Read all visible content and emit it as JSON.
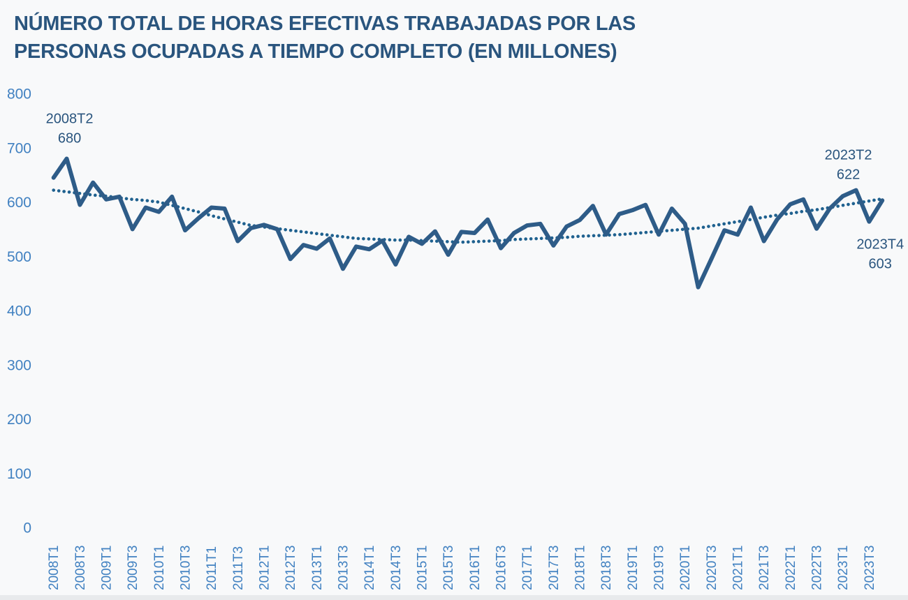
{
  "chart_data": {
    "type": "line",
    "title_lines": [
      "NÚMERO TOTAL DE HORAS EFECTIVAS TRABAJADAS POR LAS",
      "PERSONAS OCUPADAS A TIEMPO COMPLETO (EN MILLONES)"
    ],
    "title": "NÚMERO TOTAL DE HORAS EFECTIVAS TRABAJADAS POR LAS PERSONAS OCUPADAS A TIEMPO COMPLETO (EN MILLONES)",
    "ylim": [
      0,
      800
    ],
    "yticks": [
      800,
      700,
      600,
      500,
      400,
      300,
      200,
      100,
      0
    ],
    "x_tick_labels": [
      "2008T1",
      "2008T3",
      "2009T1",
      "2009T3",
      "2010T1",
      "2010T3",
      "2011T1",
      "2011T3",
      "2012T1",
      "2012T3",
      "2013T1",
      "2013T3",
      "2014T1",
      "2014T3",
      "2015T1",
      "2015T3",
      "2016T1",
      "2016T3",
      "2017T1",
      "2017T3",
      "2018T1",
      "2018T3",
      "2019T1",
      "2019T3",
      "2020T1",
      "2020T3",
      "2021T1",
      "2021T3",
      "2022T1",
      "2022T3",
      "2023T1",
      "2023T3"
    ],
    "categories": [
      "2008T1",
      "2008T2",
      "2008T3",
      "2008T4",
      "2009T1",
      "2009T2",
      "2009T3",
      "2009T4",
      "2010T1",
      "2010T2",
      "2010T3",
      "2010T4",
      "2011T1",
      "2011T2",
      "2011T3",
      "2011T4",
      "2012T1",
      "2012T2",
      "2012T3",
      "2012T4",
      "2013T1",
      "2013T2",
      "2013T3",
      "2013T4",
      "2014T1",
      "2014T2",
      "2014T3",
      "2014T4",
      "2015T1",
      "2015T2",
      "2015T3",
      "2015T4",
      "2016T1",
      "2016T2",
      "2016T3",
      "2016T4",
      "2017T1",
      "2017T2",
      "2017T3",
      "2017T4",
      "2018T1",
      "2018T2",
      "2018T3",
      "2018T4",
      "2019T1",
      "2019T2",
      "2019T3",
      "2019T4",
      "2020T1",
      "2020T2",
      "2020T3",
      "2020T4",
      "2021T1",
      "2021T2",
      "2021T3",
      "2021T4",
      "2022T1",
      "2022T2",
      "2022T3",
      "2022T4",
      "2023T1",
      "2023T2",
      "2023T3",
      "2023T4"
    ],
    "series": [
      {
        "name": "horas-efectivas",
        "values": [
          645,
          680,
          595,
          636,
          605,
          610,
          550,
          590,
          582,
          610,
          548,
          570,
          590,
          588,
          528,
          552,
          558,
          550,
          495,
          521,
          514,
          533,
          477,
          518,
          513,
          529,
          485,
          536,
          523,
          546,
          503,
          545,
          543,
          568,
          515,
          543,
          557,
          560,
          520,
          555,
          567,
          593,
          540,
          578,
          585,
          595,
          540,
          588,
          560,
          443,
          495,
          548,
          540,
          590,
          528,
          568,
          596,
          605,
          551,
          588,
          611,
          622,
          564,
          603
        ]
      },
      {
        "name": "tendencia",
        "values": [
          622,
          619,
          616,
          613,
          611,
          608,
          605,
          603,
          600,
          594,
          588,
          582,
          575,
          569,
          563,
          557,
          554,
          551,
          548,
          545,
          542,
          539,
          536,
          533,
          532,
          531,
          530,
          530,
          529,
          528,
          527,
          526,
          527,
          528,
          529,
          531,
          532,
          533,
          534,
          535,
          537,
          538,
          539,
          540,
          542,
          544,
          546,
          548,
          550,
          552,
          556,
          560,
          564,
          568,
          572,
          576,
          579,
          583,
          586,
          590,
          594,
          598,
          602,
          606
        ]
      }
    ],
    "annotations": [
      {
        "label": "2008T2",
        "value": "680"
      },
      {
        "label": "2023T2",
        "value": "622"
      },
      {
        "label": "2023T4",
        "value": "603"
      }
    ],
    "colors": {
      "background": "#f8f9fa",
      "title": "#2a557e",
      "axis_labels": "#4181c1",
      "line": "#2e5c88",
      "trend_dots": "#1f618f",
      "annotation": "#2a557e"
    },
    "legend": "none",
    "grid": "off"
  }
}
